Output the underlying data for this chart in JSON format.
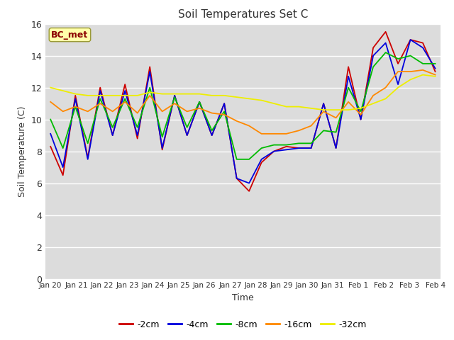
{
  "title": "Soil Temperatures Set C",
  "xlabel": "Time",
  "ylabel": "Soil Temperature (C)",
  "annotation": "BC_met",
  "ylim": [
    0,
    16
  ],
  "yticks": [
    0,
    2,
    4,
    6,
    8,
    10,
    12,
    14,
    16
  ],
  "x_labels": [
    "Jan 20",
    "Jan 21",
    "Jan 22",
    "Jan 23",
    "Jan 24",
    "Jan 25",
    "Jan 26",
    "Jan 27",
    "Jan 28",
    "Jan 29",
    "Jan 30",
    "Jan 31",
    "Feb 1",
    "Feb 2",
    "Feb 3",
    "Feb 4"
  ],
  "series": {
    "-2cm": {
      "color": "#cc0000",
      "data": [
        8.3,
        6.5,
        11.5,
        7.6,
        12.0,
        9.0,
        12.2,
        8.8,
        13.3,
        8.1,
        11.5,
        9.0,
        11.1,
        9.0,
        11.0,
        6.3,
        5.5,
        7.3,
        8.0,
        8.3,
        8.2,
        8.2,
        11.0,
        8.2,
        13.3,
        10.0,
        14.5,
        15.5,
        13.5,
        15.0,
        14.8,
        13.0
      ]
    },
    "-4cm": {
      "color": "#0000dd",
      "data": [
        9.1,
        7.0,
        11.3,
        7.5,
        11.8,
        9.0,
        11.8,
        9.0,
        13.0,
        8.2,
        11.5,
        9.0,
        11.1,
        9.0,
        11.0,
        6.3,
        6.0,
        7.5,
        8.0,
        8.1,
        8.2,
        8.2,
        11.0,
        8.2,
        12.7,
        10.0,
        14.0,
        14.8,
        12.2,
        15.0,
        14.5,
        13.2
      ]
    },
    "-8cm": {
      "color": "#00bb00",
      "data": [
        10.0,
        8.2,
        10.8,
        8.5,
        11.3,
        9.5,
        11.3,
        9.5,
        12.0,
        8.9,
        11.4,
        9.5,
        11.1,
        9.3,
        10.5,
        7.5,
        7.5,
        8.2,
        8.4,
        8.4,
        8.5,
        8.5,
        9.3,
        9.2,
        12.0,
        10.5,
        13.3,
        14.2,
        13.8,
        14.0,
        13.5,
        13.5
      ]
    },
    "-16cm": {
      "color": "#ff8800",
      "data": [
        11.1,
        10.5,
        10.8,
        10.5,
        11.0,
        10.5,
        11.1,
        10.4,
        11.5,
        10.5,
        11.0,
        10.5,
        10.7,
        10.4,
        10.3,
        9.9,
        9.6,
        9.1,
        9.1,
        9.1,
        9.3,
        9.6,
        10.5,
        10.1,
        11.1,
        10.3,
        11.5,
        12.0,
        13.0,
        13.0,
        13.1,
        12.8
      ]
    },
    "-32cm": {
      "color": "#eeee00",
      "data": [
        12.0,
        11.8,
        11.6,
        11.5,
        11.5,
        11.5,
        11.5,
        11.5,
        11.7,
        11.6,
        11.6,
        11.6,
        11.6,
        11.5,
        11.5,
        11.4,
        11.3,
        11.2,
        11.0,
        10.8,
        10.8,
        10.7,
        10.6,
        10.6,
        10.6,
        10.7,
        11.0,
        11.3,
        12.0,
        12.5,
        12.8,
        12.7
      ]
    }
  },
  "legend_order": [
    "-2cm",
    "-4cm",
    "-8cm",
    "-16cm",
    "-32cm"
  ],
  "figure_bg": "#ffffff",
  "plot_bg": "#dcdcdc"
}
